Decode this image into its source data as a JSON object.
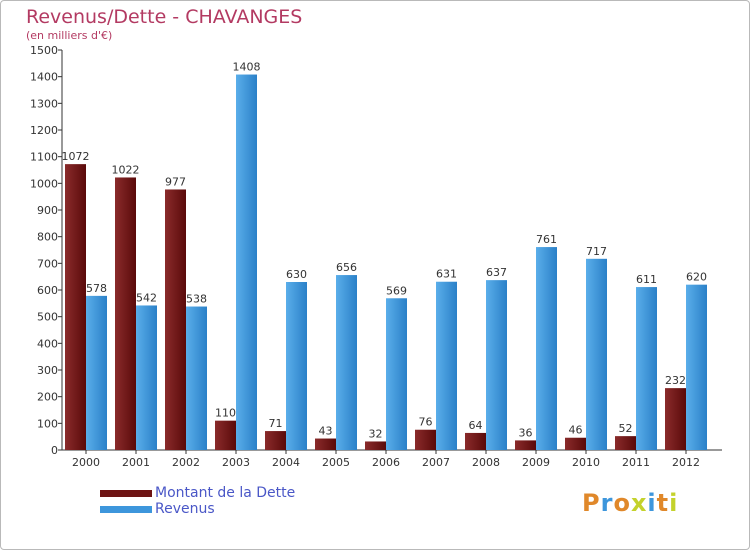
{
  "header": {
    "title": "Revenus/Dette - CHAVANGES",
    "subtitle": "(en milliers d'€)"
  },
  "legend": {
    "debt_label": "Montant de la Dette",
    "revenue_label": "Revenus"
  },
  "logo": {
    "text": "Proxiti"
  },
  "colors": {
    "debt": "#6e1414",
    "revenue": "#3d96dc",
    "title": "#b33a62",
    "legend_text": "#4a57c7"
  },
  "chart_data": {
    "type": "bar",
    "title": "Revenus/Dette - CHAVANGES",
    "ylabel": "(en milliers d'€)",
    "xlabel": "",
    "ylim": [
      0,
      1500
    ],
    "yticks": [
      0,
      100,
      200,
      300,
      400,
      500,
      600,
      700,
      800,
      900,
      1000,
      1100,
      1200,
      1300,
      1400,
      1500
    ],
    "categories": [
      "2000",
      "2001",
      "2002",
      "2003",
      "2004",
      "2005",
      "2006",
      "2007",
      "2008",
      "2009",
      "2010",
      "2011",
      "2012"
    ],
    "series": [
      {
        "name": "Montant de la Dette",
        "values": [
          1072,
          1022,
          977,
          110,
          71,
          43,
          32,
          76,
          64,
          36,
          46,
          52,
          232
        ]
      },
      {
        "name": "Revenus",
        "values": [
          578,
          542,
          538,
          1408,
          630,
          656,
          569,
          631,
          637,
          761,
          717,
          611,
          620
        ]
      }
    ],
    "grid": false,
    "legend_position": "bottom-left"
  }
}
